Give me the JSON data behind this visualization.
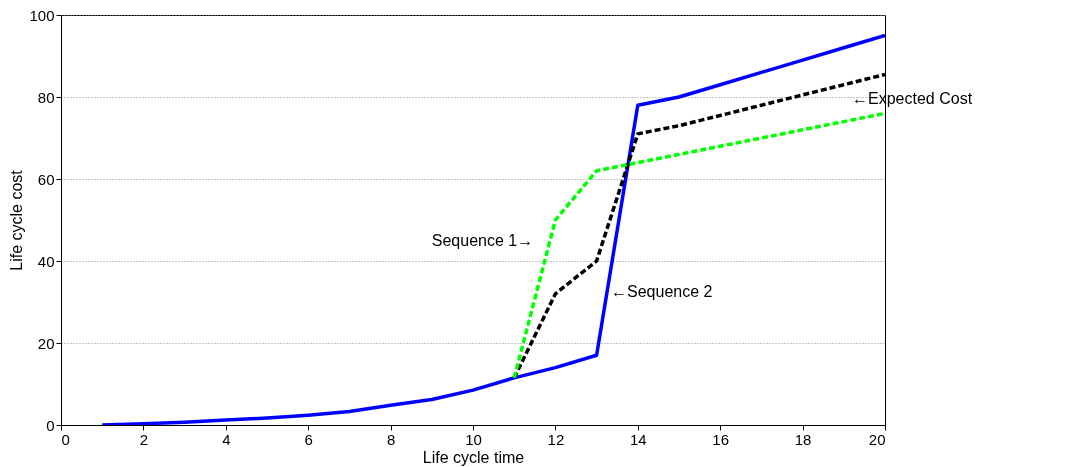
{
  "chart_data": {
    "type": "line",
    "xlabel": "Life cycle time",
    "ylabel": "Life cycle cost",
    "x": [
      1,
      2,
      3,
      4,
      5,
      6,
      7,
      8,
      9,
      10,
      11,
      12,
      13,
      14,
      15,
      16,
      17,
      18,
      19,
      20
    ],
    "series": [
      {
        "color": "#0000ff",
        "line_style": "solid",
        "values": [
          0,
          0.3,
          0.7,
          1.2,
          1.7,
          2.4,
          3.3,
          4.8,
          6.2,
          8.5,
          11.5,
          14,
          17,
          78,
          80,
          83,
          86,
          89,
          92,
          95
        ]
      },
      {
        "color": "#000000",
        "line_style": "dashed",
        "values": [
          null,
          null,
          null,
          null,
          null,
          null,
          null,
          null,
          null,
          null,
          11.5,
          32,
          40,
          71,
          73,
          75.5,
          78,
          80.5,
          83,
          85.5
        ]
      },
      {
        "color": "#00ff00",
        "line_style": "dashed",
        "values": [
          null,
          null,
          null,
          null,
          null,
          null,
          null,
          null,
          null,
          null,
          11.5,
          50,
          62,
          64,
          66,
          68,
          70,
          72,
          74,
          76
        ]
      }
    ],
    "annotations": [
      "Sequence 1→",
      "←Sequence 2",
      "←Expected Cost"
    ],
    "xlim": [
      0,
      20
    ],
    "xticks": [
      0,
      2,
      4,
      6,
      8,
      10,
      12,
      14,
      16,
      18,
      20
    ],
    "ylim": [
      0,
      100
    ],
    "yticks": [
      0,
      20,
      40,
      60,
      80,
      100
    ],
    "grid": "y"
  }
}
